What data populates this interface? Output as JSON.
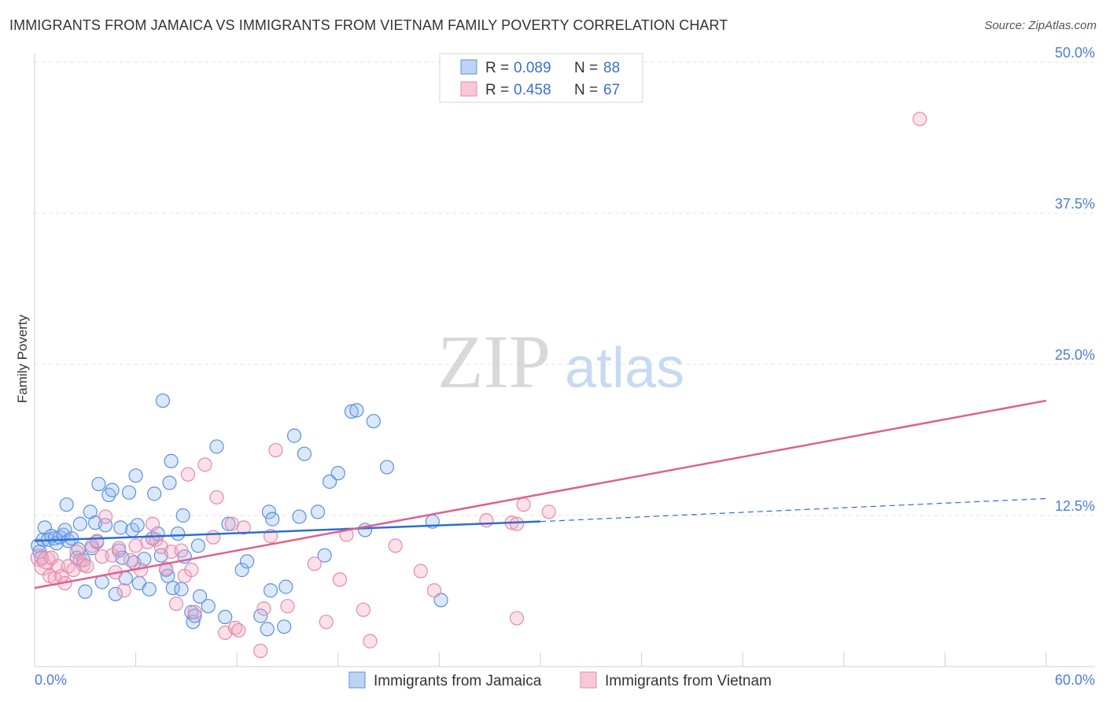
{
  "chart_data": {
    "type": "scatter",
    "title": "IMMIGRANTS FROM JAMAICA VS IMMIGRANTS FROM VIETNAM FAMILY POVERTY CORRELATION CHART",
    "source": "Source: ZipAtlas.com",
    "ylabel": "Family Poverty",
    "xlim": [
      0,
      60
    ],
    "ylim": [
      0,
      50
    ],
    "y_ticks": [
      {
        "value": 12.5,
        "label": "12.5%"
      },
      {
        "value": 25,
        "label": "25.0%"
      },
      {
        "value": 37.5,
        "label": "37.5%"
      },
      {
        "value": 50,
        "label": "50.0%"
      }
    ],
    "x_tick_labels": {
      "min": "0.0%",
      "max": "60.0%"
    },
    "grid": true,
    "watermark": {
      "zip": "ZIP",
      "atlas": "atlas"
    },
    "legend": {
      "position": "top-center",
      "rows": [
        {
          "r_label": "R =",
          "r_value": "0.089",
          "n_label": "N =",
          "n_value": "88"
        },
        {
          "r_label": "R =",
          "r_value": "0.458",
          "n_label": "N =",
          "n_value": "67"
        }
      ]
    },
    "series": [
      {
        "name": "Immigrants from Jamaica",
        "color": "#5b8fe0",
        "line_color": "#2a6fd0",
        "trend": {
          "x0": 0,
          "y0": 10.4,
          "x1": 30,
          "y1": 12.0,
          "x_dash_end": 60,
          "y_dash_end": 13.9
        },
        "points": [
          [
            0.2,
            10.0
          ],
          [
            0.3,
            9.5
          ],
          [
            0.4,
            9.0
          ],
          [
            0.5,
            10.5
          ],
          [
            0.6,
            11.5
          ],
          [
            0.8,
            10.5
          ],
          [
            1.0,
            10.8
          ],
          [
            1.2,
            10.6
          ],
          [
            1.3,
            10.2
          ],
          [
            1.5,
            10.7
          ],
          [
            1.7,
            10.9
          ],
          [
            1.8,
            11.3
          ],
          [
            1.9,
            13.4
          ],
          [
            2.0,
            10.4
          ],
          [
            2.2,
            10.6
          ],
          [
            2.5,
            9.0
          ],
          [
            2.6,
            9.7
          ],
          [
            2.7,
            11.8
          ],
          [
            2.9,
            8.8
          ],
          [
            3.0,
            6.2
          ],
          [
            3.3,
            12.8
          ],
          [
            3.4,
            9.8
          ],
          [
            3.6,
            11.9
          ],
          [
            3.7,
            10.3
          ],
          [
            3.8,
            15.1
          ],
          [
            4.0,
            7.0
          ],
          [
            4.2,
            11.7
          ],
          [
            4.4,
            14.2
          ],
          [
            4.6,
            14.6
          ],
          [
            4.8,
            6.0
          ],
          [
            5.0,
            9.6
          ],
          [
            5.1,
            11.5
          ],
          [
            5.2,
            9.0
          ],
          [
            5.4,
            7.3
          ],
          [
            5.6,
            14.4
          ],
          [
            5.8,
            11.3
          ],
          [
            5.9,
            8.6
          ],
          [
            6.0,
            15.8
          ],
          [
            6.1,
            11.7
          ],
          [
            6.2,
            6.9
          ],
          [
            6.5,
            8.9
          ],
          [
            6.8,
            6.4
          ],
          [
            7.0,
            10.6
          ],
          [
            7.1,
            14.3
          ],
          [
            7.3,
            11.0
          ],
          [
            7.5,
            9.2
          ],
          [
            7.6,
            22.0
          ],
          [
            7.8,
            8.0
          ],
          [
            7.9,
            7.5
          ],
          [
            8.0,
            15.2
          ],
          [
            8.1,
            17.0
          ],
          [
            8.2,
            6.5
          ],
          [
            8.5,
            11.0
          ],
          [
            8.7,
            6.4
          ],
          [
            8.8,
            12.5
          ],
          [
            8.9,
            9.1
          ],
          [
            9.3,
            4.5
          ],
          [
            9.4,
            3.7
          ],
          [
            9.5,
            4.2
          ],
          [
            9.7,
            10.0
          ],
          [
            9.8,
            5.8
          ],
          [
            10.3,
            5.0
          ],
          [
            10.8,
            18.2
          ],
          [
            11.3,
            4.1
          ],
          [
            11.5,
            11.8
          ],
          [
            12.3,
            8.0
          ],
          [
            12.6,
            8.7
          ],
          [
            13.4,
            4.2
          ],
          [
            13.8,
            3.1
          ],
          [
            13.9,
            12.8
          ],
          [
            14.0,
            6.3
          ],
          [
            14.1,
            12.2
          ],
          [
            14.8,
            3.3
          ],
          [
            14.9,
            6.6
          ],
          [
            15.4,
            19.1
          ],
          [
            15.7,
            12.4
          ],
          [
            16.0,
            17.6
          ],
          [
            16.8,
            12.8
          ],
          [
            17.2,
            9.2
          ],
          [
            17.5,
            15.3
          ],
          [
            18.0,
            16.0
          ],
          [
            18.8,
            21.1
          ],
          [
            19.1,
            21.2
          ],
          [
            19.6,
            11.3
          ],
          [
            20.1,
            20.3
          ],
          [
            20.9,
            16.5
          ],
          [
            23.6,
            12.0
          ],
          [
            24.1,
            5.5
          ]
        ]
      },
      {
        "name": "Immigrants from Vietnam",
        "color": "#e888a8",
        "line_color": "#e0608c",
        "trend": {
          "x0": 0,
          "y0": 6.5,
          "x1": 60,
          "y1": 22.0
        },
        "points": [
          [
            0.3,
            9.0
          ],
          [
            0.5,
            8.3
          ],
          [
            0.7,
            8.8
          ],
          [
            0.9,
            7.5
          ],
          [
            1.0,
            9.0
          ],
          [
            1.2,
            7.3
          ],
          [
            1.4,
            8.3
          ],
          [
            1.6,
            7.5
          ],
          [
            1.8,
            6.9
          ],
          [
            2.0,
            8.3
          ],
          [
            2.3,
            8.0
          ],
          [
            2.5,
            9.5
          ],
          [
            2.7,
            8.8
          ],
          [
            2.9,
            8.4
          ],
          [
            3.1,
            8.3
          ],
          [
            3.4,
            10.0
          ],
          [
            3.7,
            10.4
          ],
          [
            4.0,
            9.1
          ],
          [
            4.2,
            12.4
          ],
          [
            4.6,
            9.2
          ],
          [
            4.8,
            7.8
          ],
          [
            5.0,
            9.8
          ],
          [
            5.3,
            6.3
          ],
          [
            5.7,
            8.8
          ],
          [
            6.0,
            10.0
          ],
          [
            6.3,
            8.0
          ],
          [
            6.7,
            10.3
          ],
          [
            7.0,
            11.8
          ],
          [
            7.2,
            10.5
          ],
          [
            7.5,
            9.9
          ],
          [
            7.8,
            8.1
          ],
          [
            8.1,
            9.5
          ],
          [
            8.4,
            5.2
          ],
          [
            8.7,
            9.6
          ],
          [
            8.9,
            7.5
          ],
          [
            9.1,
            15.9
          ],
          [
            9.3,
            8.0
          ],
          [
            9.5,
            4.5
          ],
          [
            10.1,
            16.7
          ],
          [
            10.6,
            10.7
          ],
          [
            10.8,
            14.0
          ],
          [
            11.3,
            2.8
          ],
          [
            11.7,
            11.8
          ],
          [
            11.9,
            3.2
          ],
          [
            12.1,
            3.0
          ],
          [
            12.4,
            11.5
          ],
          [
            13.4,
            1.3
          ],
          [
            13.6,
            4.8
          ],
          [
            14.0,
            10.8
          ],
          [
            14.3,
            17.9
          ],
          [
            15.0,
            5.0
          ],
          [
            16.6,
            8.5
          ],
          [
            17.3,
            3.7
          ],
          [
            18.1,
            7.2
          ],
          [
            18.5,
            10.9
          ],
          [
            19.5,
            4.7
          ],
          [
            19.9,
            2.1
          ],
          [
            21.4,
            10.0
          ],
          [
            22.9,
            7.9
          ],
          [
            23.7,
            6.3
          ],
          [
            26.8,
            12.1
          ],
          [
            28.3,
            11.9
          ],
          [
            28.6,
            4.0
          ],
          [
            29.0,
            13.4
          ],
          [
            30.5,
            12.8
          ],
          [
            52.5,
            45.3
          ],
          [
            28.6,
            11.8
          ]
        ]
      }
    ]
  }
}
